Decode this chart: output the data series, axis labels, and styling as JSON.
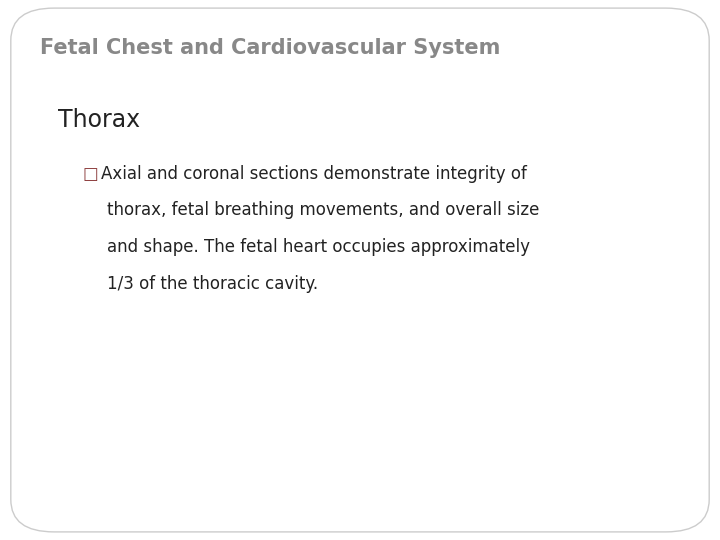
{
  "title": "Fetal Chest and Cardiovascular System",
  "title_color": "#888888",
  "title_fontsize": 15,
  "title_bold": true,
  "section_heading": "Thorax",
  "section_fontsize": 17,
  "section_color": "#222222",
  "bullet_line1": "□Axial and coronal sections demonstrate integrity of",
  "bullet_line2": "thorax, fetal breathing movements, and overall size",
  "bullet_line3": "and shape. The fetal heart occupies approximately",
  "bullet_line4": "1/3 of the thoracic cavity.",
  "bullet_symbol_color": "#8B3A3A",
  "bullet_fontsize": 12,
  "bullet_color_text": "#222222",
  "background_color": "#ffffff",
  "border_color": "#cccccc",
  "fig_width": 7.2,
  "fig_height": 5.4
}
